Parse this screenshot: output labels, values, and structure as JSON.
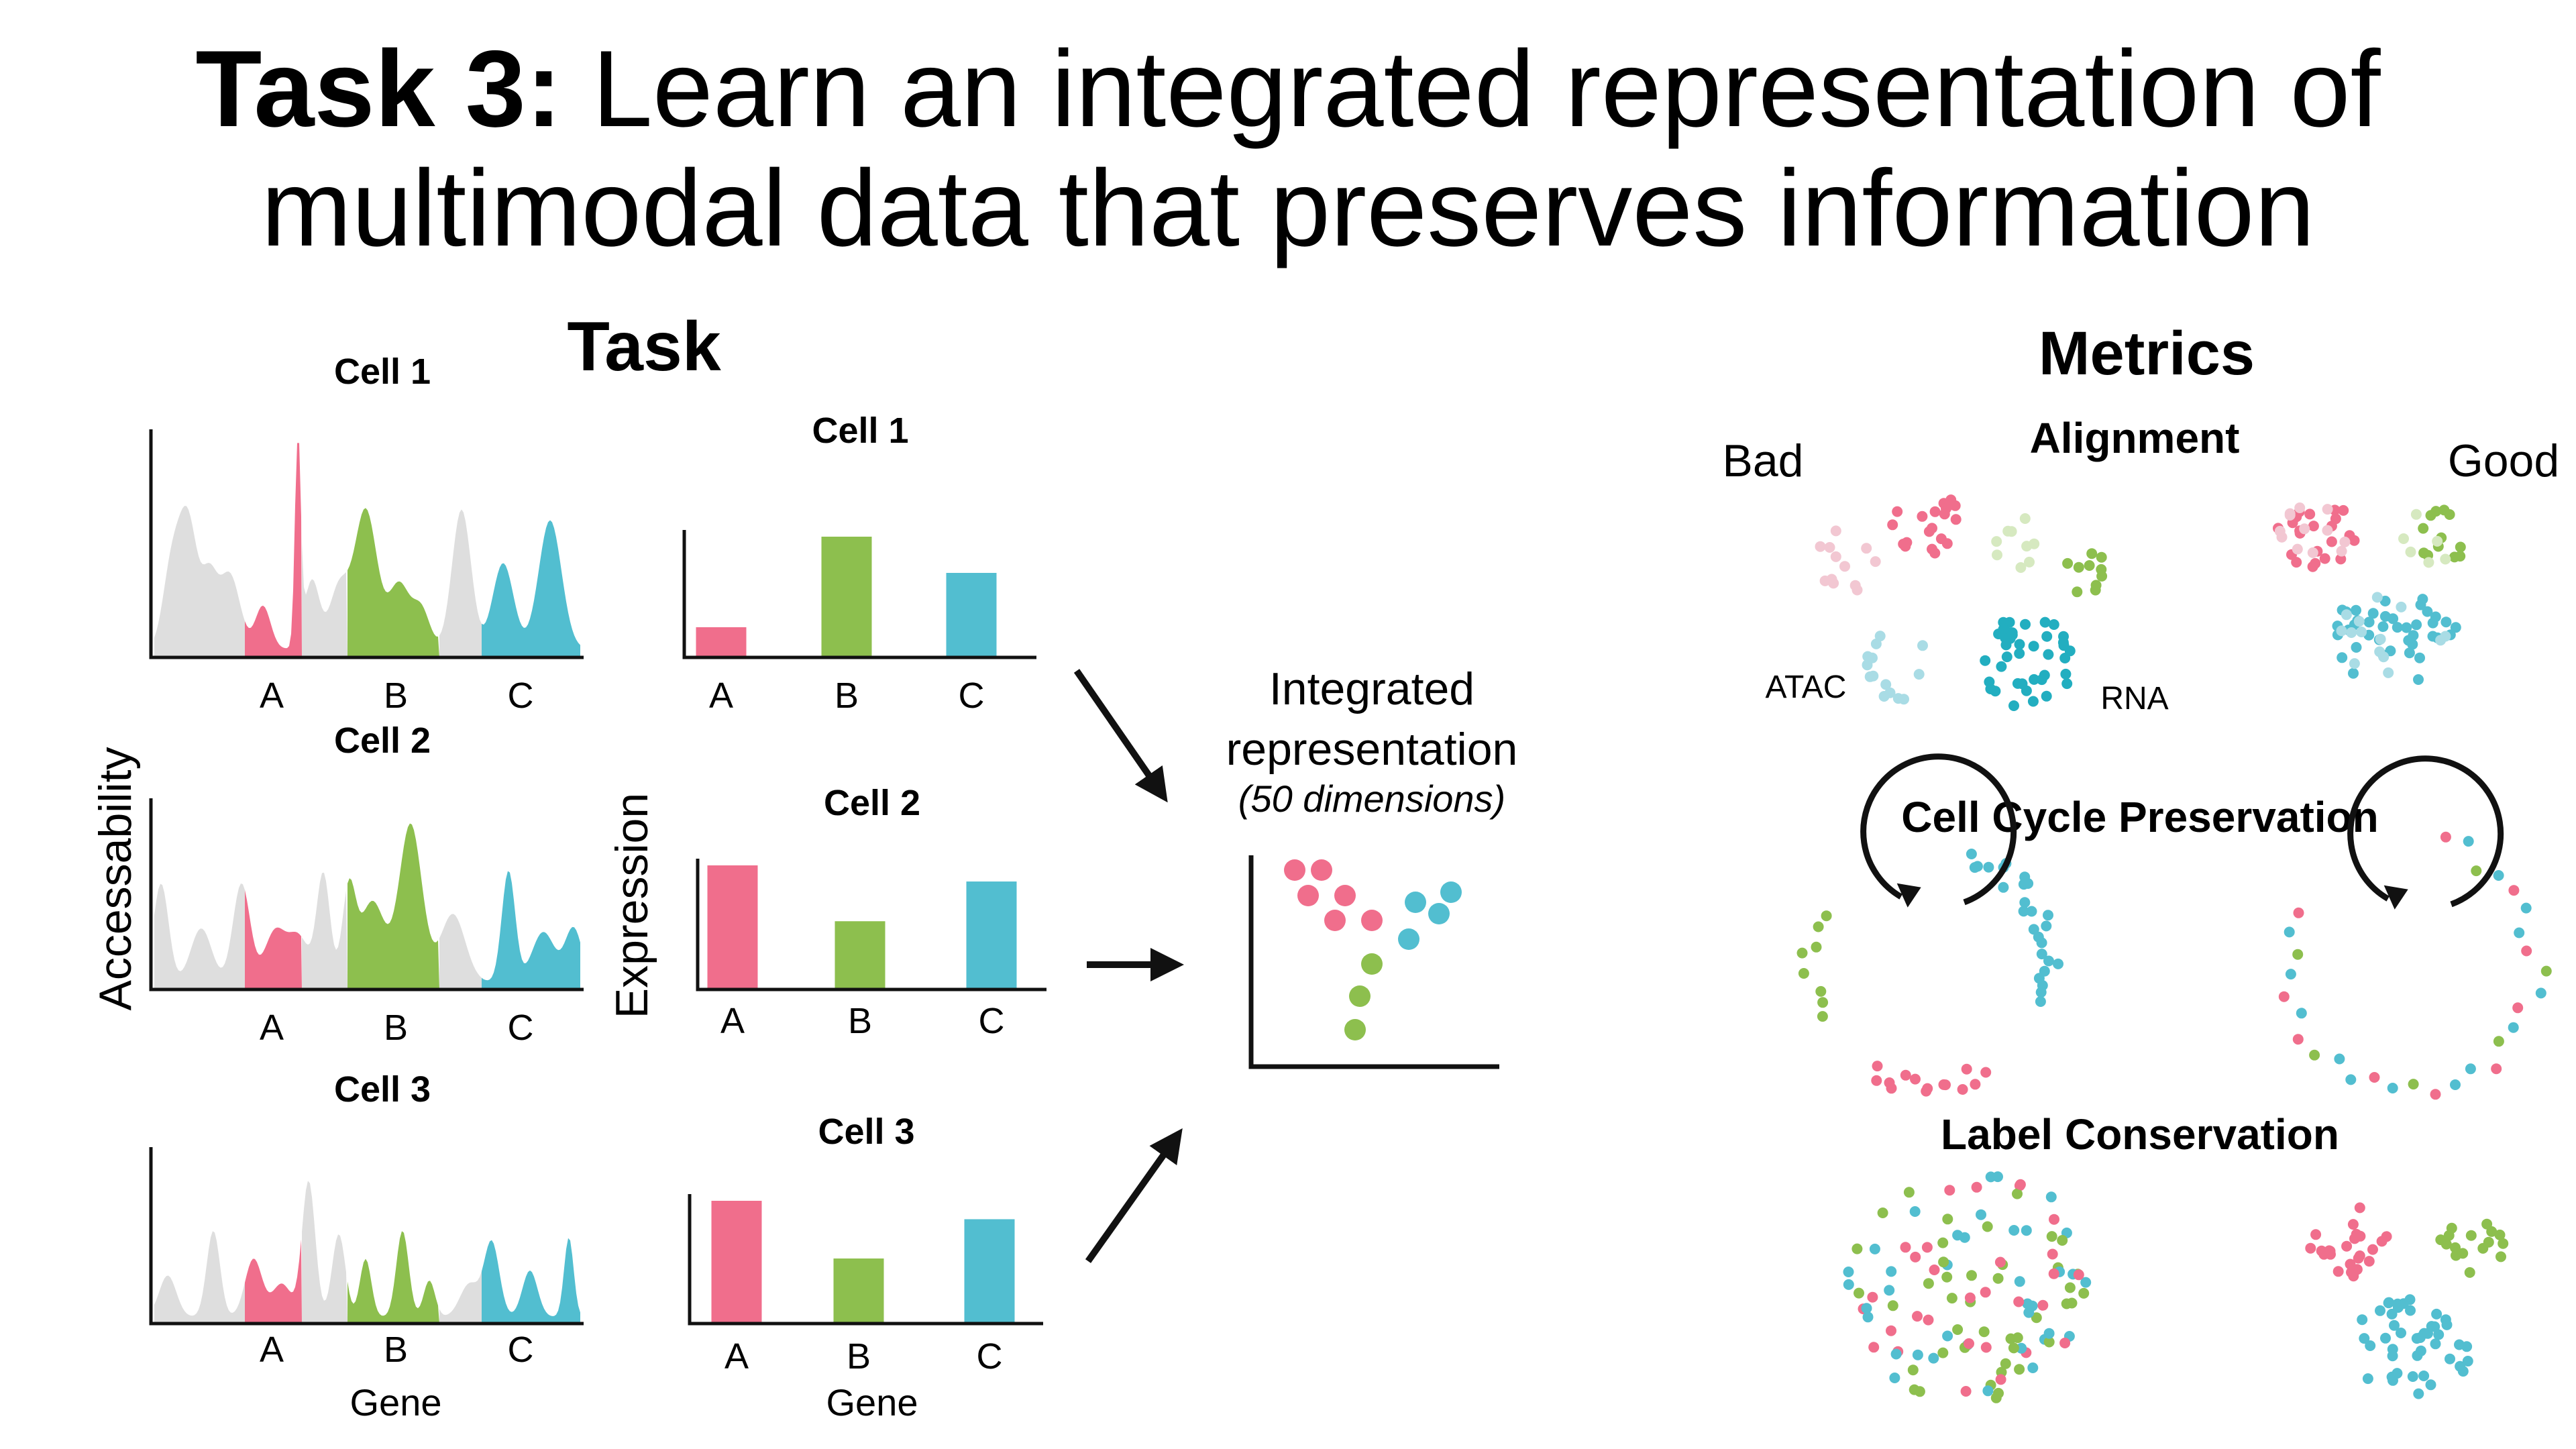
{
  "title": {
    "bold": "Task 3:",
    "rest": " Learn an integrated representation of",
    "line2": "multimodal data that preserves information"
  },
  "task": {
    "heading": "Task",
    "accessibility_axis": "Accessability",
    "expression_axis": "Expression",
    "gene_label": "Gene",
    "cells": [
      "Cell 1",
      "Cell 2",
      "Cell 3"
    ],
    "genes": [
      "A",
      "B",
      "C"
    ],
    "expression": [
      [
        0.25,
        1.0,
        0.7
      ],
      [
        1.0,
        0.55,
        0.87
      ],
      [
        1.0,
        0.53,
        0.85
      ]
    ]
  },
  "integrated": {
    "line1": "Integrated",
    "line2": "representation",
    "line3": "(50 dimensions)"
  },
  "metrics": {
    "heading": "Metrics",
    "bad": "Bad",
    "good": "Good",
    "alignment": "Alignment",
    "atac": "ATAC",
    "rna": "RNA",
    "cell_cycle": "Cell Cycle Preservation",
    "label_conservation": "Label Conservation"
  },
  "colors": {
    "pink": "#F06E8C",
    "green": "#8DBF4E",
    "blue": "#52BED0",
    "gray": "#DEDEDE",
    "light_pink": "#F2C7D2",
    "light_green": "#D6E9C0",
    "light_blue": "#A9DCE5",
    "dark_blue": "#22AEC0"
  }
}
